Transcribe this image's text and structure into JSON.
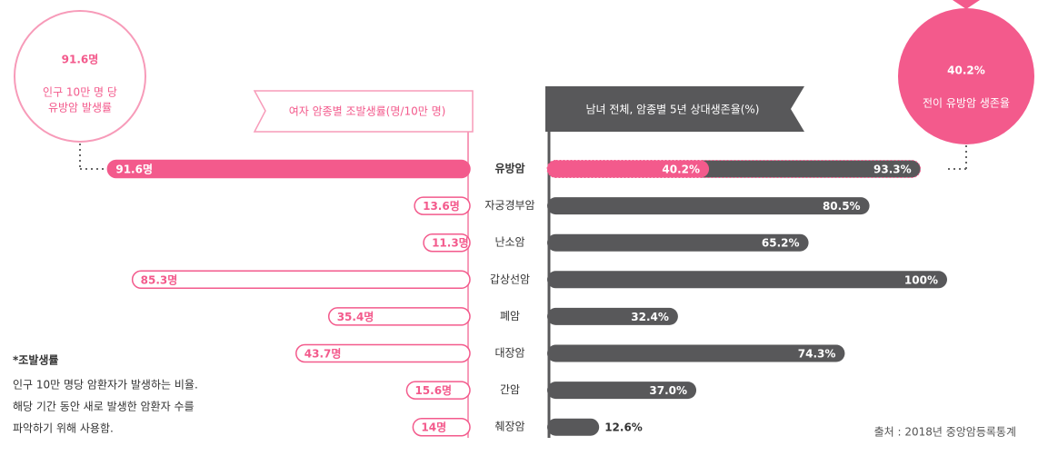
{
  "chart_data": {
    "type": "butterfly",
    "categories": [
      "유방암",
      "자궁경부암",
      "난소암",
      "갑상선암",
      "폐암",
      "대장암",
      "간암",
      "췌장암"
    ],
    "xlim": [
      0,
      100
    ],
    "series": [
      {
        "name": "여자 암종별 조발생률(명/10만 명)",
        "color": "#f35a8c",
        "values": [
          91.6,
          13.6,
          11.3,
          85.3,
          35.4,
          43.7,
          15.6,
          14
        ],
        "value_labels": [
          "91.6명",
          "13.6명",
          "11.3명",
          "85.3명",
          "35.4명",
          "43.7명",
          "15.6명",
          "14명"
        ]
      },
      {
        "name": "남녀 전체, 암종별 5년 상대생존율(%)",
        "color": "#58585a",
        "values": [
          93.3,
          80.5,
          65.2,
          100,
          32.4,
          74.3,
          37.0,
          12.6
        ],
        "value_labels": [
          "93.3%",
          "80.5%",
          "65.2%",
          "100%",
          "32.4%",
          "74.3%",
          "37.0%",
          "12.6%"
        ]
      }
    ],
    "highlight": {
      "category": 0,
      "value": 40.2,
      "label": "40.2%",
      "color": "#f35a8c"
    },
    "callouts": [
      {
        "value_text": "91.6명",
        "lines": [
          "인구 10만 명 당",
          "유방암 발생률"
        ]
      },
      {
        "value_text": "40.2%",
        "lines": [
          "전이 유방암 생존율"
        ]
      }
    ],
    "footnote": {
      "title": "*조발생률",
      "lines": [
        "인구 10만 명당 암환자가 발생하는 비율.",
        "해당 기간 동안 새로 발생한 암환자 수를",
        "파악하기 위해 사용함."
      ]
    },
    "source": "출처 : 2018년 중앙암등록통계"
  }
}
